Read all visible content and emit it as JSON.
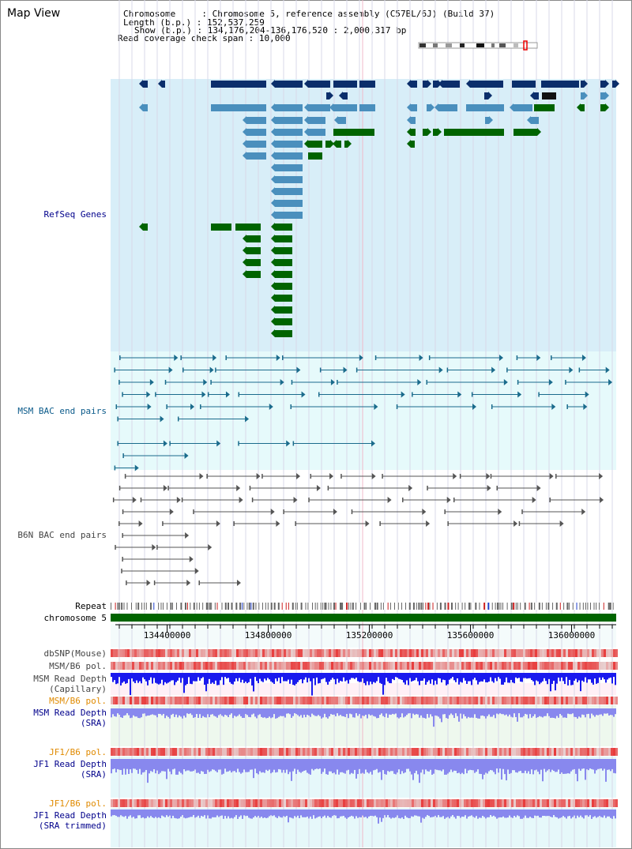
{
  "view_title": "Map View",
  "info": {
    "chromosome_key": "Chromosome",
    "chromosome_val": "Chromosome 5, reference assembly (C57BL/6J) (Build 37)",
    "length_key": "Length (b.p.)",
    "length_val": "152,537,259",
    "show_key": "Show (b.p.)",
    "show_val": "134,176,204-136,176,520 : 2,000,317 bp",
    "span_key": "Read coverage check span",
    "span_val": "10,000"
  },
  "tracks": {
    "refseq": "RefSeq Genes",
    "msm_bac": "MSM BAC end pairs",
    "b6n_bac": "B6N BAC end pairs",
    "repeat": "Repeat",
    "chromosome": "chromosome 5",
    "dbsnp": "dbSNP(Mouse)",
    "msm_b6_pol_1": "MSM/B6 pol.",
    "msm_read_depth_cap": "MSM Read Depth\n(Capillary)",
    "msm_b6_pol_2": "MSM/B6 pol.",
    "msm_read_depth_sra": "MSM Read Depth\n(SRA)",
    "jf1_b6_pol_1": "JF1/B6 pol.",
    "jf1_read_depth_sra": "JF1 Read Depth\n(SRA)",
    "jf1_b6_pol_2": "JF1/B6 pol.",
    "jf1_read_depth_trim": "JF1 Read Depth\n(SRA trimmed)"
  },
  "axis": {
    "range": [
      134176204,
      136176520
    ],
    "ticks": [
      134400000,
      134800000,
      135200000,
      135600000,
      136000000
    ],
    "tick_labels": [
      "134400000",
      "134800000",
      "135200000",
      "135600000",
      "136000000"
    ]
  },
  "colors": {
    "refseq_bg": "#d8eef8",
    "bac_bg": "#e6fafb",
    "ref_dark": "#0b2e6b",
    "ref_mid": "#4a8fbd",
    "ref_green": "#006400",
    "msm_bac": "#1a6b8c",
    "b6n_bac": "#555555",
    "chromosome": "#006400",
    "snp": "#e83030",
    "depth_cap": "#1a1aee",
    "depth_sra": "#8888ee"
  }
}
